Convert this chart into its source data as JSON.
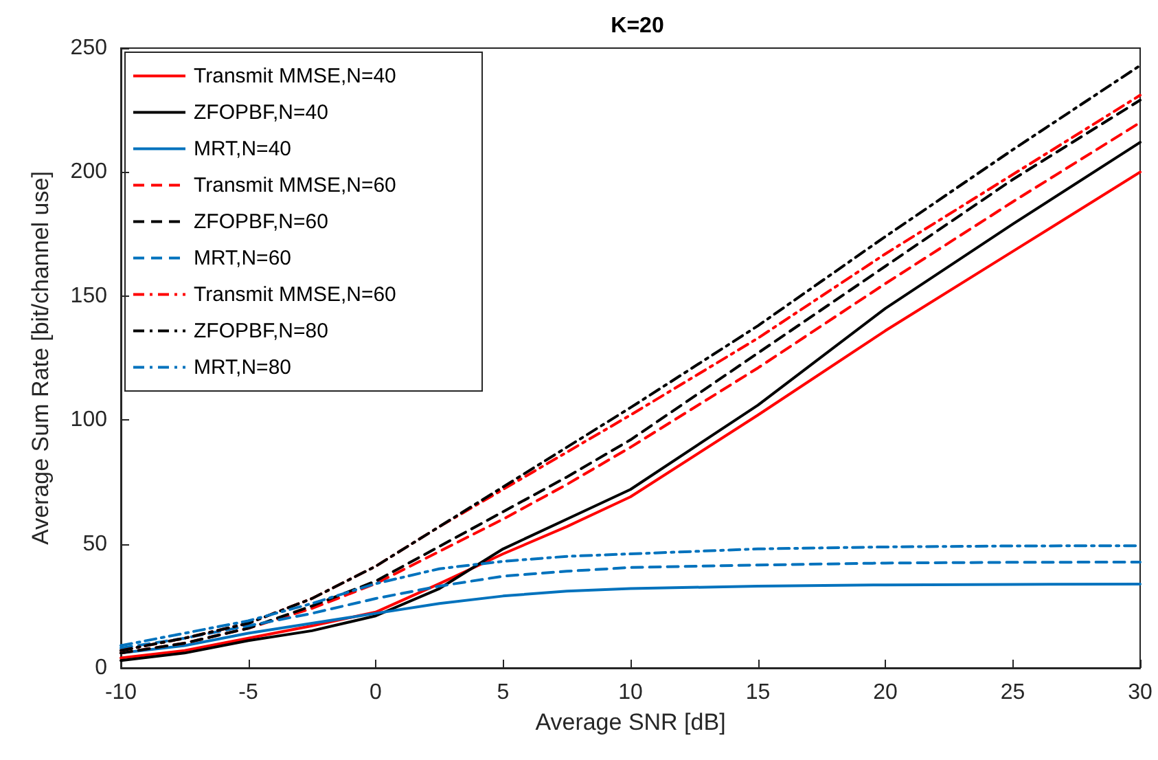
{
  "chart_data": {
    "type": "line",
    "title": "K=20",
    "xlabel": "Average SNR [dB]",
    "ylabel": "Average Sum Rate [bit/channel use]",
    "x": [
      -10,
      -7.5,
      -5,
      -2.5,
      0,
      2.5,
      5,
      7.5,
      10,
      15,
      20,
      25,
      30
    ],
    "xlim": [
      -10,
      30
    ],
    "xticks": [
      -10,
      -5,
      0,
      5,
      10,
      15,
      20,
      25,
      30
    ],
    "ylim": [
      0,
      250
    ],
    "yticks": [
      0,
      50,
      100,
      150,
      200,
      250
    ],
    "grid": false,
    "legend": "top left",
    "marker": "none",
    "series": [
      {
        "name": "Transmit MMSE,N=40",
        "color": "#ff0000",
        "line_style": "solid",
        "values": [
          4,
          7,
          12,
          17,
          22.5,
          34,
          46,
          57,
          69,
          102,
          136,
          168,
          200
        ]
      },
      {
        "name": "ZFOPBF,N=40",
        "color": "#000000",
        "line_style": "solid",
        "values": [
          3,
          6,
          11,
          15,
          21,
          32,
          48,
          60,
          72,
          106,
          145,
          179,
          212
        ]
      },
      {
        "name": "MRT,N=40",
        "color": "#0072bd",
        "line_style": "solid",
        "values": [
          6,
          9,
          14,
          18,
          22,
          26,
          29,
          31,
          32,
          33,
          33.5,
          33.7,
          33.8
        ]
      },
      {
        "name": "Transmit MMSE,N=60",
        "color": "#ff0000",
        "line_style": "dashed",
        "values": [
          6,
          10,
          16,
          24,
          34,
          47,
          60,
          74,
          89,
          121,
          155,
          188,
          220
        ]
      },
      {
        "name": "ZFOPBF,N=60",
        "color": "#000000",
        "line_style": "dashed",
        "values": [
          6,
          10,
          16,
          25,
          35,
          49,
          63,
          77,
          92,
          127,
          162,
          197,
          229
        ]
      },
      {
        "name": "MRT,N=60",
        "color": "#0072bd",
        "line_style": "dashed",
        "values": [
          8,
          12,
          17,
          22,
          28,
          33,
          37,
          39,
          40.5,
          41.5,
          42.3,
          42.6,
          42.7
        ]
      },
      {
        "name": "Transmit MMSE,N=60",
        "color": "#ff0000",
        "line_style": "dashdot",
        "values": [
          7,
          12,
          18,
          28,
          41,
          57,
          72,
          87,
          102,
          133,
          167,
          199,
          231
        ]
      },
      {
        "name": "ZFOPBF,N=80",
        "color": "#000000",
        "line_style": "dashdot",
        "values": [
          7,
          12,
          18,
          28,
          41,
          57,
          73,
          89,
          105,
          138,
          174,
          209,
          243
        ]
      },
      {
        "name": "MRT,N=80",
        "color": "#0072bd",
        "line_style": "dashdot",
        "values": [
          9,
          14,
          19,
          26,
          34,
          40,
          43,
          45,
          46,
          48,
          48.8,
          49.2,
          49.3
        ]
      }
    ]
  }
}
